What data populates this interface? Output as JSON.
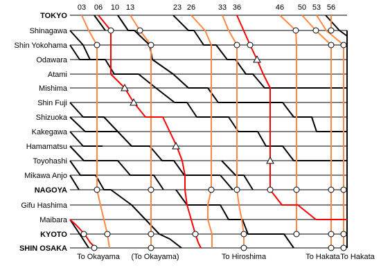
{
  "stations": [
    {
      "name": "TOKYO",
      "bold": true
    },
    {
      "name": "Shinagawa",
      "bold": false
    },
    {
      "name": "Shin Yokohama",
      "bold": false
    },
    {
      "name": "Odawara",
      "bold": false
    },
    {
      "name": "Atami",
      "bold": false
    },
    {
      "name": "Mishima",
      "bold": false
    },
    {
      "name": "Shin Fuji",
      "bold": false
    },
    {
      "name": "Shizuoka",
      "bold": false
    },
    {
      "name": "Kakegawa",
      "bold": false
    },
    {
      "name": "Hamamatsu",
      "bold": false
    },
    {
      "name": "Toyohashi",
      "bold": false
    },
    {
      "name": "Mikawa Anjo",
      "bold": false
    },
    {
      "name": "NAGOYA",
      "bold": true
    },
    {
      "name": "Gifu Hashima",
      "bold": false
    },
    {
      "name": "Maibara",
      "bold": false
    },
    {
      "name": "KYOTO",
      "bold": true
    },
    {
      "name": "SHIN OSAKA",
      "bold": true
    }
  ],
  "minute_labels": [
    "03",
    "06",
    "10",
    "13",
    "23",
    "26",
    "33",
    "36",
    "46",
    "50",
    "53",
    "56"
  ],
  "destinations": [
    "To Okayama",
    "(To Okayama)",
    "To Hiroshima",
    "To Hakata",
    "To Hakata"
  ],
  "colors": {
    "express_red": "#ff0000",
    "orange": "#ff8844",
    "black": "#000000",
    "grid": "#000000"
  }
}
